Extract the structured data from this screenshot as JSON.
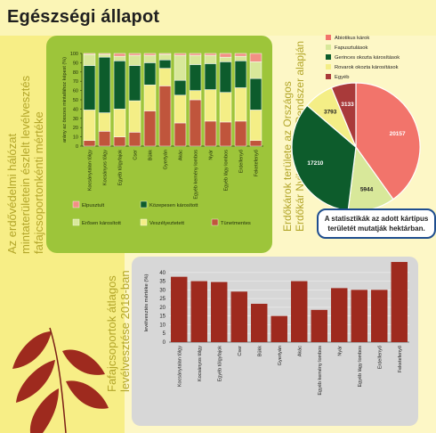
{
  "page": {
    "title": "Egészségi állapot",
    "left_label_line1": "Az erdővédelmi hálózat",
    "left_label_line2": "mintaterületein észlelt levélvesztés",
    "left_label_line3": "fafajcsoportonkénti mértéke",
    "bottom_label_line1": "Fafajcsoportok átlagos",
    "bottom_label_line2": "levélvesztése 2018-ban",
    "right_label_line1": "Erdőkárok területe az Országos",
    "right_label_line2": "Erdőkár Nyilvántartási Rendszer alapján",
    "note": "A statisztikák az adott kártípus területét mutatják hektárban.",
    "colors": {
      "elpusztult": "#f29085",
      "kozepesen": "#0d5c2c",
      "erosen": "#d8e89a",
      "veszelyeztetett": "#f4ee86",
      "tunetmentes": "#c0553c",
      "bar": "#9e2a1e",
      "green_panel": "#9dc53a",
      "gray_panel": "#d7d7d7"
    }
  },
  "chart_data": [
    {
      "type": "bar",
      "stacked": true,
      "ylabel": "arány az összes mintafához képest (%)",
      "ylim": [
        0,
        100
      ],
      "yticks": [
        0,
        10,
        20,
        30,
        40,
        50,
        60,
        70,
        80,
        90,
        100
      ],
      "categories": [
        "Kocsánytalan tölgy",
        "Kocsányos tölgy",
        "Egyéb tölgyfajok",
        "Cser",
        "Bükk",
        "Gyertyán",
        "Akác",
        "Egyéb kemény lombos",
        "Nyár",
        "Egyéb lágy lombos",
        "Erdeifenyő",
        "Feketefenyő"
      ],
      "series": [
        {
          "name": "Tünetmentes",
          "color": "#c0553c",
          "values": [
            6,
            16,
            10,
            15,
            38,
            65,
            25,
            50,
            27,
            26,
            27,
            6
          ]
        },
        {
          "name": "Veszélyeztetett",
          "color": "#f4ee86",
          "values": [
            33,
            20,
            30,
            34,
            28,
            19,
            30,
            10,
            34,
            32,
            36,
            33
          ]
        },
        {
          "name": "Közepesen károsított",
          "color": "#0d5c2c",
          "values": [
            48,
            60,
            52,
            38,
            24,
            9,
            16,
            28,
            28,
            33,
            29,
            34
          ]
        },
        {
          "name": "Erősen károsított",
          "color": "#d8e89a",
          "values": [
            12,
            3,
            5,
            11,
            8,
            6,
            27,
            10,
            9,
            5,
            5,
            18
          ]
        },
        {
          "name": "Elpusztult",
          "color": "#f29085",
          "values": [
            1,
            1,
            3,
            2,
            2,
            1,
            2,
            2,
            2,
            4,
            3,
            9
          ]
        }
      ],
      "legend": [
        "Elpusztult",
        "Közepesen károsított",
        "Erősen károsított",
        "Veszélyeztetett",
        "Tünetmentes"
      ]
    },
    {
      "type": "bar",
      "ylabel": "levélvesztés mértéke (%)",
      "ylim": [
        0,
        45
      ],
      "yticks": [
        0,
        5,
        10,
        15,
        20,
        25,
        30,
        35,
        40
      ],
      "categories": [
        "Kocsánytalan tölgy",
        "Kocsányos tölgy",
        "Egyéb tölgyfajok",
        "Cser",
        "Bükk",
        "Gyertyán",
        "Akác",
        "Egyéb kemény lombos",
        "Nyár",
        "Egyéb lágy lombos",
        "Erdeifenyő",
        "Feketefenyő"
      ],
      "values": [
        37.5,
        35,
        34.5,
        29,
        22,
        15,
        35,
        18.5,
        31,
        30,
        30,
        46
      ],
      "color": "#9e2a1e"
    },
    {
      "type": "pie",
      "legend_position": "top-right",
      "labels": [
        "Abiotikus károk",
        "Fapusztulások",
        "Gerinces okozta károsítások",
        "Rovarok okozta károsítások",
        "Egyéb"
      ],
      "values": [
        20157,
        5944,
        17210,
        3793,
        3133
      ],
      "value_labels": [
        "20157",
        "5944",
        "17210",
        "3793",
        "3133"
      ],
      "colors": [
        "#f2746b",
        "#d8e89a",
        "#0d5c2c",
        "#f4ee86",
        "#a93a3a"
      ]
    }
  ]
}
